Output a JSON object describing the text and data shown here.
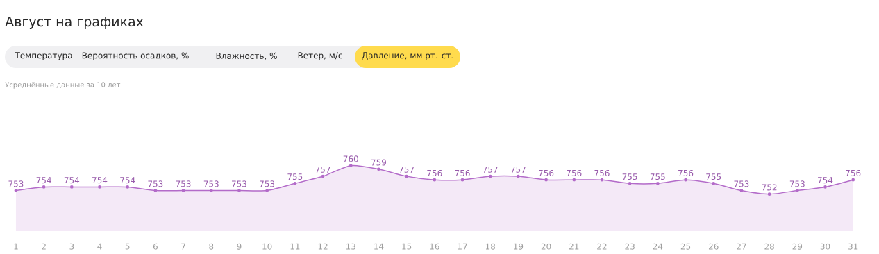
{
  "chart_data": {
    "type": "area",
    "title": "Август на графиках",
    "subtitle": "Усреднённые данные за 10 лет",
    "annotations": [
      "Температура",
      "Вероятность осадков, %",
      "Влажность, %",
      "Ветер, м/с",
      "Давление, мм рт. ст."
    ],
    "categories": [
      "1",
      "2",
      "3",
      "4",
      "5",
      "6",
      "7",
      "8",
      "9",
      "10",
      "11",
      "12",
      "13",
      "14",
      "15",
      "16",
      "17",
      "18",
      "19",
      "20",
      "21",
      "22",
      "23",
      "24",
      "25",
      "26",
      "27",
      "28",
      "29",
      "30",
      "31"
    ],
    "tick_labels": "x",
    "marker": "circle",
    "series": [
      {
        "color": "#b36bc9",
        "values": [
          753,
          754,
          754,
          754,
          754,
          753,
          753,
          753,
          753,
          753,
          755,
          757,
          760,
          759,
          757,
          756,
          756,
          757,
          757,
          756,
          756,
          756,
          755,
          755,
          756,
          755,
          753,
          752,
          753,
          754,
          756
        ],
        "value_labels": [
          "753",
          "754",
          "754",
          "754",
          "754",
          "753",
          "753",
          "753",
          "753",
          "753",
          "755",
          "757",
          "760",
          "759",
          "757",
          "756",
          "756",
          "757",
          "757",
          "756",
          "756",
          "756",
          "755",
          "755",
          "756",
          "755",
          "753",
          "752",
          "753",
          "754",
          "756"
        ]
      }
    ]
  }
}
